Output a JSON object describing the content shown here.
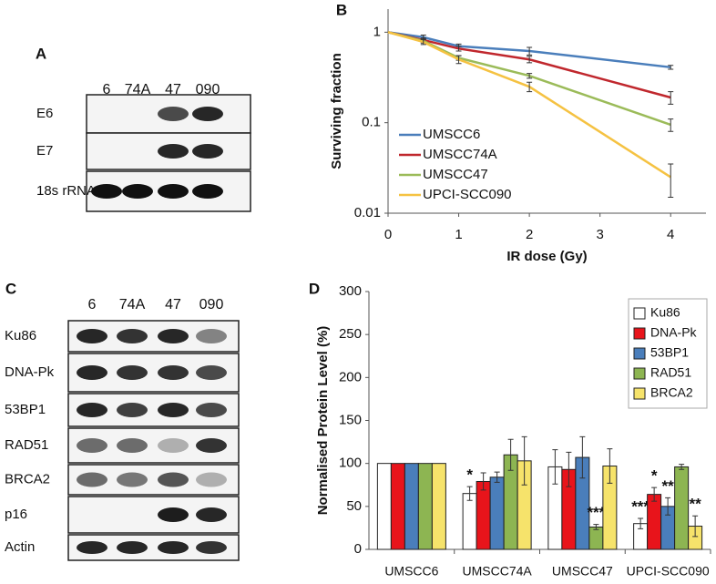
{
  "panel_labels": [
    "A",
    "B",
    "C",
    "D"
  ],
  "blot_a": {
    "lanes": [
      "6",
      "74A",
      "47",
      "090"
    ],
    "rows": [
      "E6",
      "E7",
      "18s rRNA"
    ]
  },
  "blot_c": {
    "lanes": [
      "6",
      "74A",
      "47",
      "090"
    ],
    "rows": [
      "Ku86",
      "DNA-Pk",
      "53BP1",
      "RAD51",
      "BRCA2",
      "p16",
      "Actin"
    ]
  },
  "chart_data": [
    {
      "type": "line",
      "x_label": "IR dose (Gy)",
      "y_label": "Surviving fraction",
      "x": [
        0,
        0.5,
        1,
        2,
        4
      ],
      "xlim": [
        0,
        4.5
      ],
      "xticks": [
        0,
        1,
        2,
        3,
        4
      ],
      "ylim": [
        0.01,
        1.8
      ],
      "yticks": [
        0.01,
        0.1,
        1
      ],
      "log_y": true,
      "legend": "left",
      "series": [
        {
          "name": "UMSCC6",
          "color": "#4a7ebb",
          "values": [
            1,
            0.88,
            0.7,
            0.62,
            0.41
          ],
          "errors": [
            0,
            0.05,
            0.04,
            0.06,
            0.02
          ]
        },
        {
          "name": "UMSCC74A",
          "color": "#c0272d",
          "values": [
            1,
            0.82,
            0.66,
            0.5,
            0.19
          ],
          "errors": [
            0,
            0.04,
            0.04,
            0.04,
            0.03
          ]
        },
        {
          "name": "UMSCC47",
          "color": "#9bbb59",
          "values": [
            1,
            0.8,
            0.52,
            0.33,
            0.095
          ],
          "errors": [
            0,
            0.04,
            0.03,
            0.02,
            0.015
          ]
        },
        {
          "name": "UPCI-SCC090",
          "color": "#f5c242",
          "values": [
            1,
            0.78,
            0.5,
            0.25,
            0.025
          ],
          "errors": [
            0,
            0.05,
            0.05,
            0.03,
            0.01
          ]
        }
      ]
    },
    {
      "type": "bar",
      "y_label": "Normalised Protein Level (%)",
      "categories": [
        "UMSCC6",
        "UMSCC74A",
        "UMSCC47",
        "UPCI-SCC090"
      ],
      "ylim": [
        0,
        300
      ],
      "yticks": [
        0,
        50,
        100,
        150,
        200,
        250,
        300
      ],
      "legend": "top-right",
      "series": [
        {
          "name": "Ku86",
          "color": "#ffffff",
          "values": [
            100,
            65,
            96,
            30
          ],
          "errors": [
            0,
            8,
            20,
            6
          ],
          "significance": [
            null,
            "*",
            null,
            "***"
          ]
        },
        {
          "name": "DNA-Pk",
          "color": "#e8141b",
          "values": [
            100,
            79,
            93,
            64
          ],
          "errors": [
            0,
            10,
            20,
            8
          ],
          "significance": [
            null,
            null,
            null,
            "*"
          ]
        },
        {
          "name": "53BP1",
          "color": "#4a7ebb",
          "values": [
            100,
            84,
            107,
            50
          ],
          "errors": [
            0,
            6,
            24,
            10
          ],
          "significance": [
            null,
            null,
            null,
            "**"
          ]
        },
        {
          "name": "RAD51",
          "color": "#8db552",
          "values": [
            100,
            110,
            26,
            96
          ],
          "errors": [
            0,
            18,
            3,
            3
          ],
          "significance": [
            null,
            null,
            "***",
            null
          ]
        },
        {
          "name": "BRCA2",
          "color": "#f6e36b",
          "values": [
            100,
            103,
            97,
            27
          ],
          "errors": [
            0,
            28,
            20,
            12
          ],
          "significance": [
            null,
            null,
            null,
            "**"
          ]
        }
      ]
    }
  ]
}
